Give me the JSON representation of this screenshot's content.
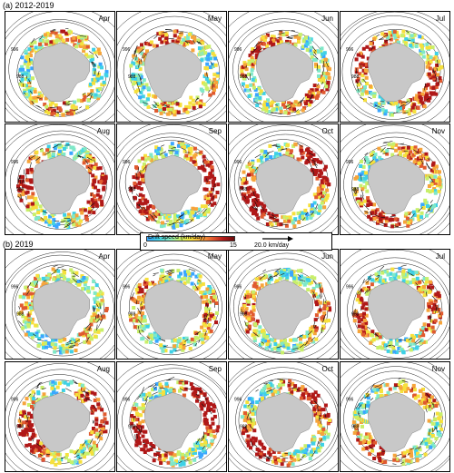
{
  "section_a": "(a) 2012-2019",
  "section_b": "(b) 2019",
  "months": [
    "Apr",
    "May",
    "Jun",
    "Jul",
    "Aug",
    "Sep",
    "Oct",
    "Nov"
  ],
  "legend": {
    "title": "Drift speed (km/day)",
    "min": "0",
    "max": "15",
    "reference": "20.0 km/day"
  },
  "contour_labels": [
    "996",
    "988",
    "980",
    "972"
  ],
  "colors": {
    "land": "#c8c8c8",
    "slow": "#3aa6ff",
    "fast": "#b01818",
    "contour": "#222222"
  }
}
